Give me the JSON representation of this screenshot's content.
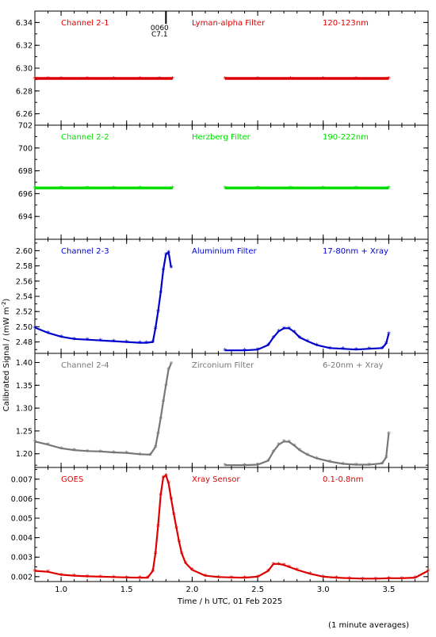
{
  "chart_data": {
    "type": "scatter",
    "title": "",
    "xlabel": "Time / h UTC, 01 Feb 2025",
    "ylabel": "Calibrated Signal / (mW m",
    "ylabel_superscript": "-2",
    "ylabel_close": ")",
    "footnote": "(1 minute averages)",
    "xlim": [
      0.8,
      3.8
    ],
    "xticks": [
      1.0,
      1.5,
      2.0,
      2.5,
      3.0,
      3.5
    ],
    "xtick_labels": [
      "1.0",
      "1.5",
      "2.0",
      "2.5",
      "3.0",
      "3.5"
    ],
    "event_marker": {
      "x": 1.8,
      "label_top": "0060",
      "label_bottom": "C7.1"
    },
    "colors": {
      "red": "#dd0000",
      "green": "#00dd00",
      "blue": "#0000cc",
      "gray": "#777777",
      "axis": "#000000"
    },
    "panels": [
      {
        "name": "Channel 2-1",
        "filter": "Lyman-alpha Filter",
        "band": "120-123nm",
        "color": "#dd0000",
        "ylim": [
          6.25,
          6.35
        ],
        "yticks": [
          6.26,
          6.28,
          6.3,
          6.32,
          6.34
        ],
        "ytick_labels": [
          "6.26",
          "6.28",
          "6.30",
          "6.32",
          "6.34"
        ],
        "x": [
          0.8,
          0.9,
          1.0,
          1.2,
          1.4,
          1.6,
          1.75,
          1.85,
          2.25,
          2.5,
          2.75,
          3.0,
          3.25,
          3.5
        ],
        "y": [
          6.291,
          6.291,
          6.291,
          6.291,
          6.291,
          6.291,
          6.291,
          6.291,
          6.291,
          6.291,
          6.291,
          6.291,
          6.291,
          6.291
        ],
        "segments": [
          [
            0.8,
            1.85
          ],
          [
            2.25,
            3.5
          ]
        ]
      },
      {
        "name": "Channel 2-2",
        "filter": "Herzberg Filter",
        "band": "190-222nm",
        "color": "#00dd00",
        "ylim": [
          692.0,
          702.0
        ],
        "yticks": [
          694,
          696,
          698,
          700,
          702
        ],
        "ytick_labels": [
          "694",
          "696",
          "698",
          "700",
          "702"
        ],
        "x": [
          0.8,
          1.0,
          1.2,
          1.4,
          1.6,
          1.85,
          2.25,
          2.5,
          2.75,
          3.0,
          3.25,
          3.5
        ],
        "y": [
          696.5,
          696.5,
          696.5,
          696.5,
          696.5,
          696.5,
          696.5,
          696.5,
          696.5,
          696.5,
          696.5,
          696.5
        ],
        "segments": [
          [
            0.8,
            1.85
          ],
          [
            2.25,
            3.5
          ]
        ]
      },
      {
        "name": "Channel 2-3",
        "filter": "Aluminium Filter",
        "band": "17-80nm + Xray",
        "color": "#0000cc",
        "ylim": [
          2.465,
          2.615
        ],
        "yticks": [
          2.48,
          2.5,
          2.52,
          2.54,
          2.56,
          2.58,
          2.6
        ],
        "ytick_labels": [
          "2.48",
          "2.50",
          "2.52",
          "2.54",
          "2.56",
          "2.58",
          "2.60"
        ],
        "x": [
          0.8,
          0.9,
          1.0,
          1.1,
          1.2,
          1.3,
          1.4,
          1.5,
          1.6,
          1.65,
          1.7,
          1.72,
          1.74,
          1.76,
          1.78,
          1.8,
          1.82,
          1.84,
          2.25,
          2.4,
          2.5,
          2.58,
          2.62,
          2.66,
          2.7,
          2.74,
          2.78,
          2.82,
          2.88,
          2.95,
          3.05,
          3.15,
          3.25,
          3.35,
          3.45,
          3.48,
          3.5
        ],
        "y": [
          2.499,
          2.492,
          2.487,
          2.484,
          2.483,
          2.482,
          2.481,
          2.48,
          2.479,
          2.479,
          2.48,
          2.498,
          2.52,
          2.545,
          2.575,
          2.595,
          2.598,
          2.578,
          2.469,
          2.469,
          2.47,
          2.476,
          2.486,
          2.494,
          2.498,
          2.498,
          2.493,
          2.486,
          2.481,
          2.476,
          2.472,
          2.471,
          2.47,
          2.471,
          2.472,
          2.478,
          2.491
        ]
      },
      {
        "name": "Channel 2-4",
        "filter": "Zirconium Filter",
        "band": "6-20nm + Xray",
        "color": "#777777",
        "ylim": [
          1.17,
          1.42
        ],
        "yticks": [
          1.2,
          1.25,
          1.3,
          1.35,
          1.4
        ],
        "ytick_labels": [
          "1.20",
          "1.25",
          "1.30",
          "1.35",
          "1.40"
        ],
        "x": [
          0.8,
          0.9,
          1.0,
          1.1,
          1.2,
          1.3,
          1.4,
          1.5,
          1.6,
          1.68,
          1.72,
          1.74,
          1.76,
          1.78,
          1.8,
          1.82,
          1.84,
          2.25,
          2.4,
          2.5,
          2.58,
          2.62,
          2.66,
          2.7,
          2.74,
          2.78,
          2.82,
          2.88,
          2.95,
          3.05,
          3.15,
          3.25,
          3.35,
          3.45,
          3.48,
          3.5
        ],
        "y": [
          1.227,
          1.22,
          1.212,
          1.208,
          1.206,
          1.205,
          1.203,
          1.202,
          1.199,
          1.198,
          1.215,
          1.245,
          1.278,
          1.315,
          1.35,
          1.385,
          1.398,
          1.175,
          1.175,
          1.176,
          1.185,
          1.205,
          1.22,
          1.227,
          1.226,
          1.218,
          1.208,
          1.198,
          1.19,
          1.183,
          1.178,
          1.176,
          1.176,
          1.179,
          1.192,
          1.245
        ]
      },
      {
        "name": "GOES",
        "filter": "Xray Sensor",
        "band": "0.1-0.8nm",
        "color": "#dd0000",
        "ylim": [
          0.00175,
          0.0076
        ],
        "yticks": [
          0.002,
          0.003,
          0.004,
          0.005,
          0.006,
          0.007
        ],
        "ytick_labels": [
          "0.002",
          "0.003",
          "0.004",
          "0.005",
          "0.006",
          "0.007"
        ],
        "x": [
          0.8,
          0.9,
          1.0,
          1.1,
          1.2,
          1.3,
          1.4,
          1.5,
          1.6,
          1.66,
          1.7,
          1.72,
          1.74,
          1.76,
          1.78,
          1.8,
          1.82,
          1.84,
          1.86,
          1.88,
          1.9,
          1.92,
          1.95,
          2.0,
          2.1,
          2.2,
          2.3,
          2.4,
          2.5,
          2.58,
          2.62,
          2.66,
          2.7,
          2.74,
          2.8,
          2.9,
          3.0,
          3.1,
          3.2,
          3.3,
          3.4,
          3.5,
          3.6,
          3.7,
          3.8
        ],
        "y": [
          0.0023,
          0.00225,
          0.0021,
          0.00205,
          0.00202,
          0.002,
          0.00198,
          0.00196,
          0.00195,
          0.00195,
          0.0023,
          0.0032,
          0.0046,
          0.0062,
          0.0071,
          0.0072,
          0.0068,
          0.006,
          0.0052,
          0.0045,
          0.0038,
          0.0032,
          0.0027,
          0.00235,
          0.00205,
          0.00198,
          0.00196,
          0.00195,
          0.002,
          0.0023,
          0.00265,
          0.00265,
          0.0026,
          0.0025,
          0.00235,
          0.00215,
          0.002,
          0.00195,
          0.00192,
          0.0019,
          0.0019,
          0.00192,
          0.00192,
          0.00195,
          0.0023
        ]
      }
    ]
  }
}
